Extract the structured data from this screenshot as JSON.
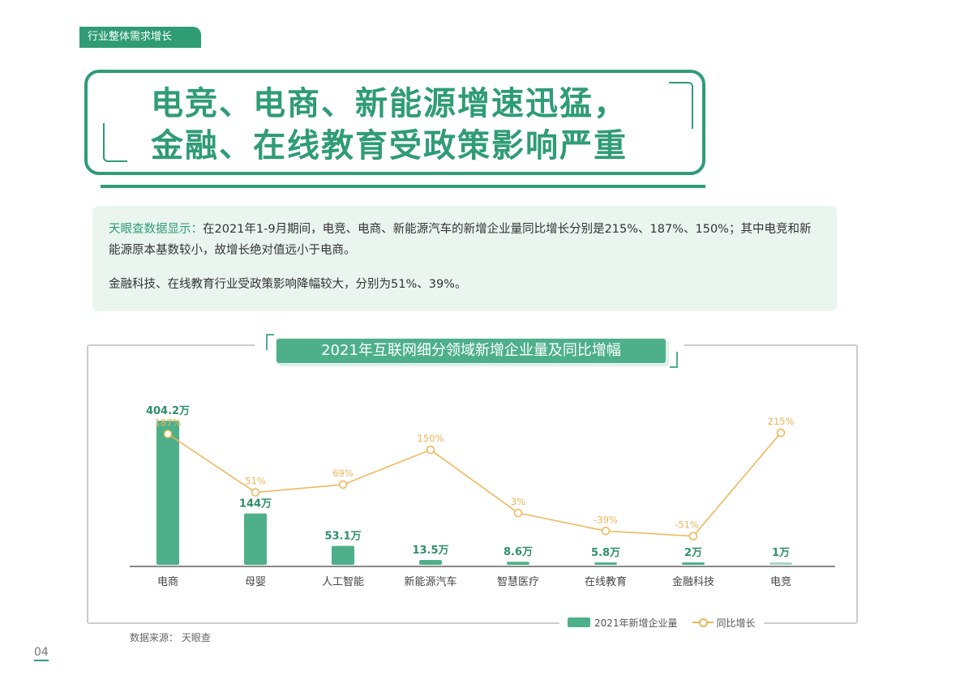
{
  "section_tag": "行业整体需求增长",
  "headline": {
    "line1": "电竞、电商、新能源增速迅猛，",
    "line2": "金融、在线教育受政策影响严重"
  },
  "summary": {
    "source_prefix": "天眼查数据显示：",
    "para1": "在2021年1-9月期间，电竞、电商、新能源汽车的新增企业量同比增长分别是215%、187%、150%；其中电竞和新能源原本基数较小，故增长绝对值远小于电商。",
    "para2": "金融科技、在线教育行业受政策影响降幅较大，分别为51%、39%。"
  },
  "chart_data": {
    "type": "bar+line",
    "title": "2021年互联网细分领域新增企业量及同比增幅",
    "categories": [
      "电商",
      "母婴",
      "人工智能",
      "新能源汽车",
      "智慧医疗",
      "在线教育",
      "金融科技",
      "电竞"
    ],
    "series": [
      {
        "name": "2021年新增企业量",
        "type": "bar",
        "unit": "万",
        "values": [
          404.2,
          144,
          53.1,
          13.5,
          8.6,
          5.8,
          2,
          1
        ],
        "labels": [
          "404.2万",
          "144万",
          "53.1万",
          "13.5万",
          "8.6万",
          "5.8万",
          "2万",
          "1万"
        ],
        "color": "#4db08a"
      },
      {
        "name": "同比增长",
        "type": "line",
        "unit": "%",
        "values": [
          187,
          51,
          69,
          150,
          3,
          -39,
          -51,
          215
        ],
        "labels": [
          "187%",
          "51%",
          "69%",
          "150%",
          "3%",
          "-39%",
          "-51%",
          "215%"
        ],
        "color": "#f0b454"
      }
    ],
    "grid": false,
    "legend": "bottom-right"
  },
  "source": "数据来源： 天眼查",
  "page_number": "04"
}
